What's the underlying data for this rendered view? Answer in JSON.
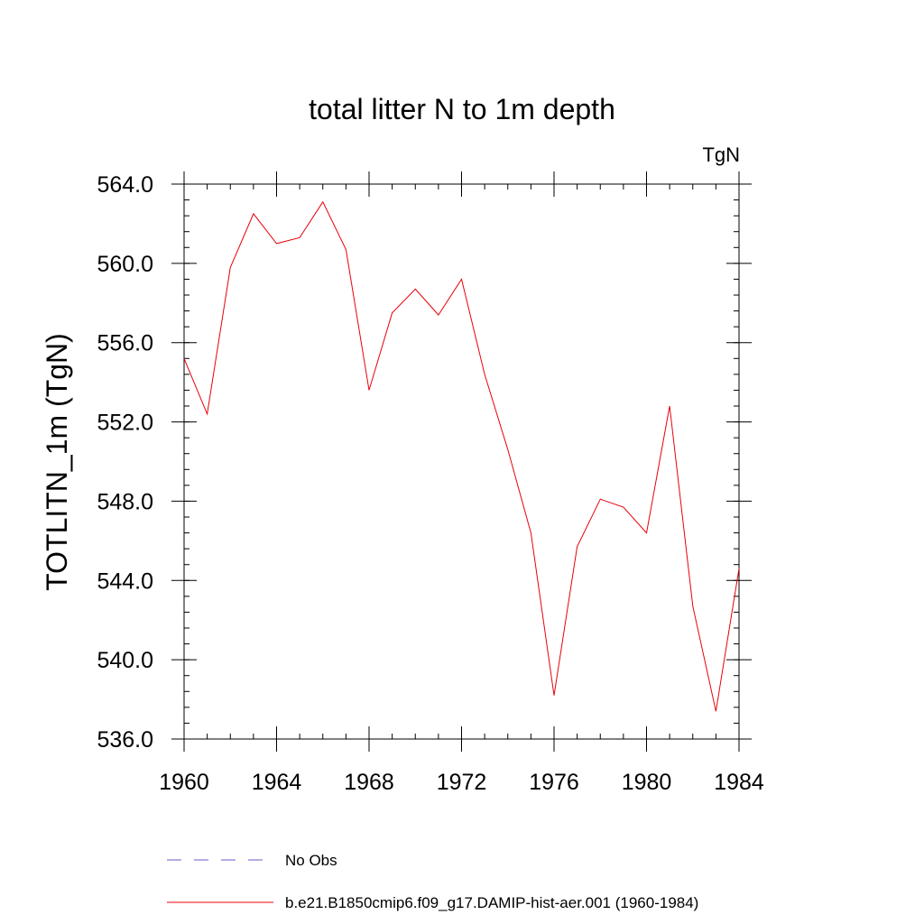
{
  "chart_data": {
    "type": "line",
    "title": "total litter N to 1m depth",
    "units_label": "TgN",
    "ylabel": "TOTLITN_1m  (TgN)",
    "xlabel": "",
    "xlim": [
      1960,
      1984
    ],
    "ylim": [
      536.0,
      564.0
    ],
    "x_ticks": [
      "1960",
      "1964",
      "1968",
      "1972",
      "1976",
      "1980",
      "1984"
    ],
    "y_ticks": [
      "536.0",
      "540.0",
      "544.0",
      "548.0",
      "552.0",
      "556.0",
      "560.0",
      "564.0"
    ],
    "grid": false,
    "legend_position": "bottom",
    "series": [
      {
        "name": "b.e21.B1850cmip6.f09_g17.DAMIP-hist-aer.001 (1960-1984)",
        "color": "#e8000b",
        "style": "solid",
        "x": [
          1960,
          1961,
          1962,
          1963,
          1964,
          1965,
          1966,
          1967,
          1968,
          1969,
          1970,
          1971,
          1972,
          1973,
          1974,
          1975,
          1976,
          1977,
          1978,
          1979,
          1980,
          1981,
          1982,
          1983,
          1984
        ],
        "values": [
          555.2,
          552.4,
          559.8,
          562.5,
          561.0,
          561.3,
          563.1,
          560.7,
          553.6,
          557.5,
          558.7,
          557.4,
          559.2,
          554.4,
          550.6,
          546.4,
          538.2,
          545.7,
          548.1,
          547.7,
          546.4,
          552.8,
          542.7,
          537.4,
          544.6
        ]
      },
      {
        "name": "No Obs",
        "color": "#6a5acd",
        "style": "dashed",
        "x": [],
        "values": []
      }
    ]
  }
}
